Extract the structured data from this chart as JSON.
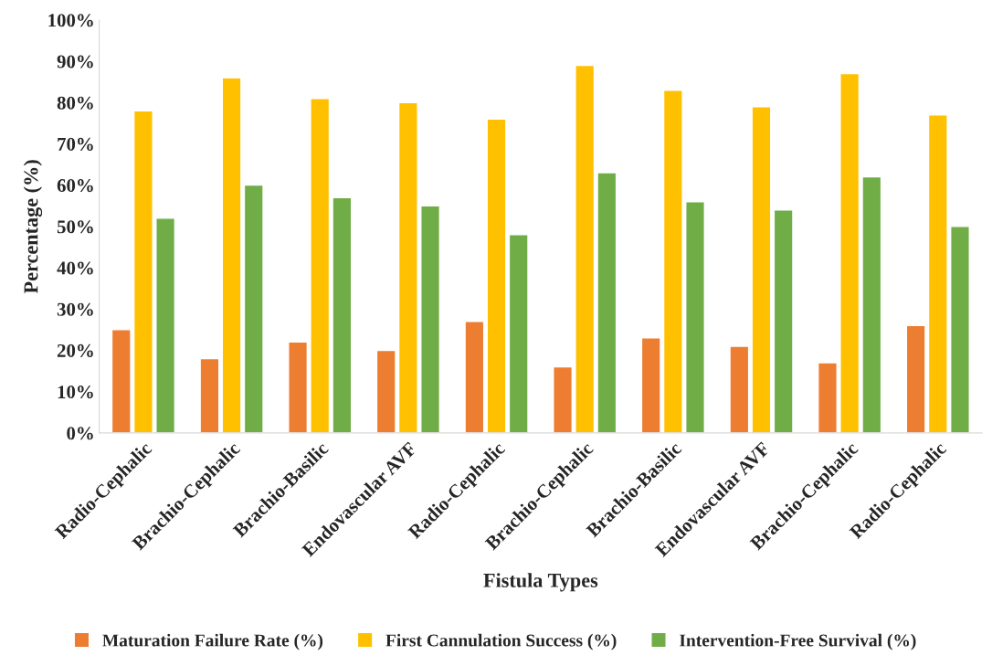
{
  "chart_data": {
    "type": "bar",
    "xlabel": "Fistula Types",
    "ylabel": "Percentage (%)",
    "categories": [
      "Radio-Cephalic",
      "Brachio-Cephalic",
      "Brachio-Basilic",
      "Endovascular AVF",
      "Radio-Cephalic",
      "Brachio-Cephalic",
      "Brachio-Basilic",
      "Endovascular AVF",
      "Brachio-Cephalic",
      "Radio-Cephalic"
    ],
    "series": [
      {
        "name": "Maturation Failure Rate (%)",
        "color": "#ed7d31",
        "values": [
          25,
          18,
          22,
          20,
          27,
          16,
          23,
          21,
          17,
          26
        ]
      },
      {
        "name": "First Cannulation Success (%)",
        "color": "#ffc000",
        "values": [
          78,
          86,
          81,
          80,
          76,
          89,
          83,
          79,
          87,
          77
        ]
      },
      {
        "name": "Intervention-Free Survival (%)",
        "color": "#70ad47",
        "values": [
          52,
          60,
          57,
          55,
          48,
          63,
          56,
          54,
          62,
          50
        ]
      }
    ],
    "ylim": [
      0,
      100
    ],
    "yticks": [
      {
        "value": 0,
        "label": "0%"
      },
      {
        "value": 10,
        "label": "10%"
      },
      {
        "value": 20,
        "label": "20%"
      },
      {
        "value": 30,
        "label": "30%"
      },
      {
        "value": 40,
        "label": "40%"
      },
      {
        "value": 50,
        "label": "50%"
      },
      {
        "value": 60,
        "label": "60%"
      },
      {
        "value": 70,
        "label": "70%"
      },
      {
        "value": 80,
        "label": "80%"
      },
      {
        "value": 90,
        "label": "90%"
      },
      {
        "value": 100,
        "label": "100%"
      }
    ],
    "grid": false,
    "legend": "bottom"
  }
}
